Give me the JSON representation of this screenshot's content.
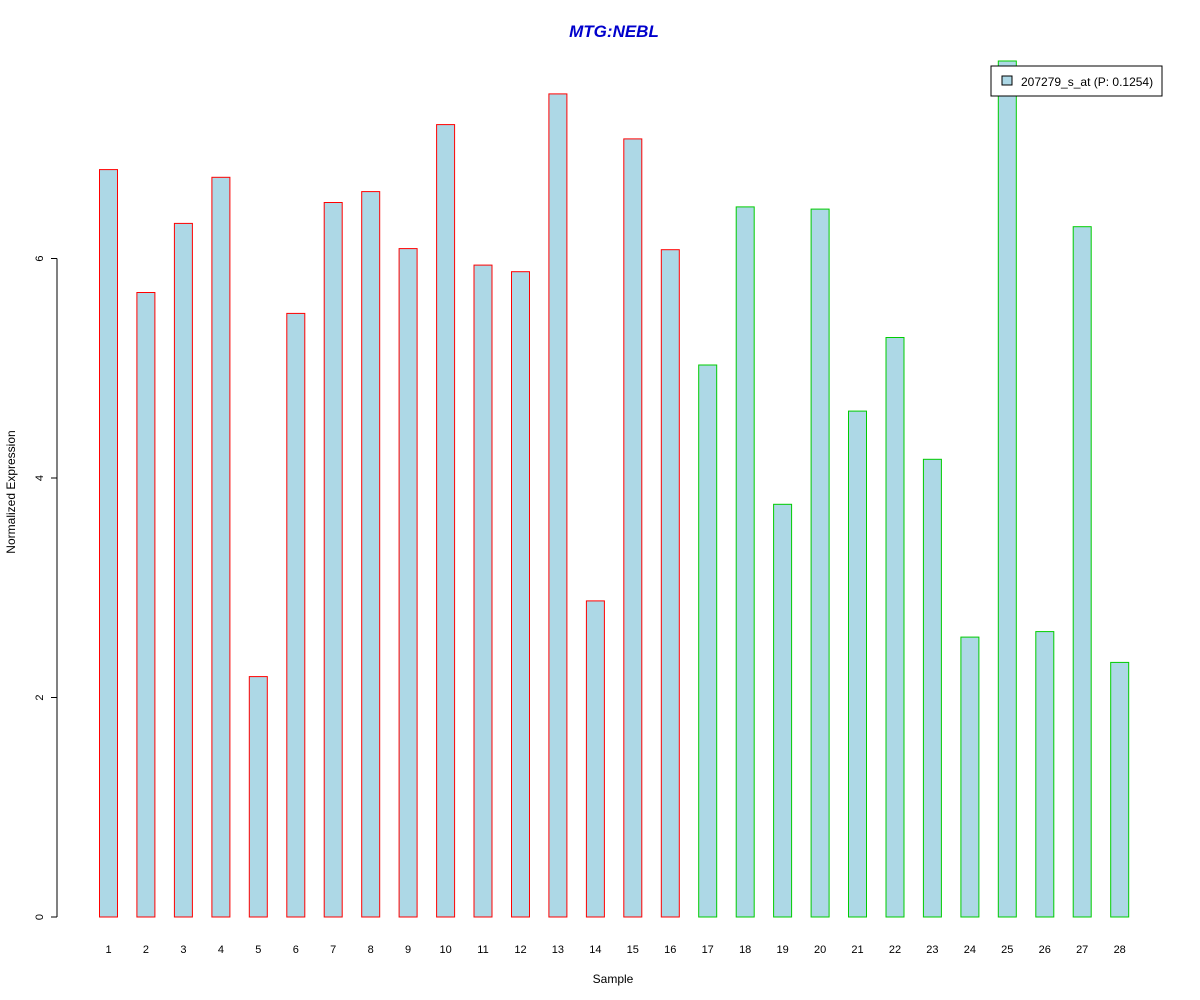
{
  "chart_data": {
    "type": "bar",
    "title": "MTG:NEBL",
    "xlabel": "Sample",
    "ylabel": "Normalized Expression",
    "categories": [
      "1",
      "2",
      "3",
      "4",
      "5",
      "6",
      "7",
      "8",
      "9",
      "10",
      "11",
      "12",
      "13",
      "14",
      "15",
      "16",
      "17",
      "18",
      "19",
      "20",
      "21",
      "22",
      "23",
      "24",
      "25",
      "26",
      "27",
      "28"
    ],
    "series": [
      {
        "name": "207279_s_at (P: 0.1254)",
        "values": [
          6.81,
          5.69,
          6.32,
          6.74,
          2.19,
          5.5,
          6.51,
          6.61,
          6.09,
          7.22,
          5.94,
          5.88,
          7.5,
          2.88,
          7.09,
          6.08,
          5.03,
          6.47,
          3.76,
          6.45,
          4.61,
          5.28,
          4.17,
          2.55,
          7.8,
          2.6,
          6.29,
          2.32
        ]
      }
    ],
    "groups": [
      {
        "samples": "1-16",
        "border_color": "#ff0000"
      },
      {
        "samples": "17-28",
        "border_color": "#00cc00"
      }
    ],
    "fill_color": "#add8e6",
    "yticks": [
      0,
      2,
      4,
      6
    ],
    "ylim": [
      0,
      7.8
    ],
    "legend": "top-right",
    "grid": false
  }
}
